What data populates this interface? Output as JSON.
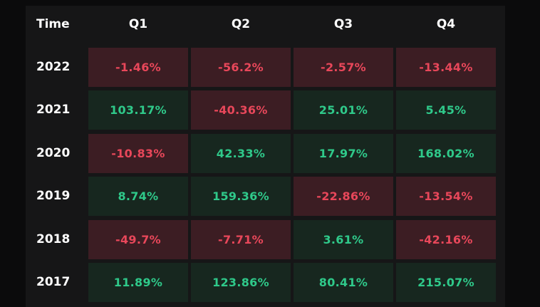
{
  "chart_data": {
    "type": "table",
    "header": [
      "Time",
      "Q1",
      "Q2",
      "Q3",
      "Q4"
    ],
    "rows": [
      {
        "year": "2022",
        "cells": [
          "-1.46%",
          "-56.2%",
          "-2.57%",
          "-13.44%"
        ],
        "values": [
          -1.46,
          -56.2,
          -2.57,
          -13.44
        ]
      },
      {
        "year": "2021",
        "cells": [
          "103.17%",
          "-40.36%",
          "25.01%",
          "5.45%"
        ],
        "values": [
          103.17,
          -40.36,
          25.01,
          5.45
        ]
      },
      {
        "year": "2020",
        "cells": [
          "-10.83%",
          "42.33%",
          "17.97%",
          "168.02%"
        ],
        "values": [
          -10.83,
          42.33,
          17.97,
          168.02
        ]
      },
      {
        "year": "2019",
        "cells": [
          "8.74%",
          "159.36%",
          "-22.86%",
          "-13.54%"
        ],
        "values": [
          8.74,
          159.36,
          -22.86,
          -13.54
        ]
      },
      {
        "year": "2018",
        "cells": [
          "-49.7%",
          "-7.71%",
          "3.61%",
          "-42.16%"
        ],
        "values": [
          -49.7,
          -7.71,
          3.61,
          -42.16
        ]
      },
      {
        "year": "2017",
        "cells": [
          "11.89%",
          "123.86%",
          "80.41%",
          "215.07%"
        ],
        "values": [
          11.89,
          123.86,
          80.41,
          215.07
        ]
      }
    ],
    "colors": {
      "negative_bg": "#3c1d23",
      "negative_text": "#e8475a",
      "positive_bg": "#17271f",
      "positive_text": "#2fc98a"
    }
  }
}
